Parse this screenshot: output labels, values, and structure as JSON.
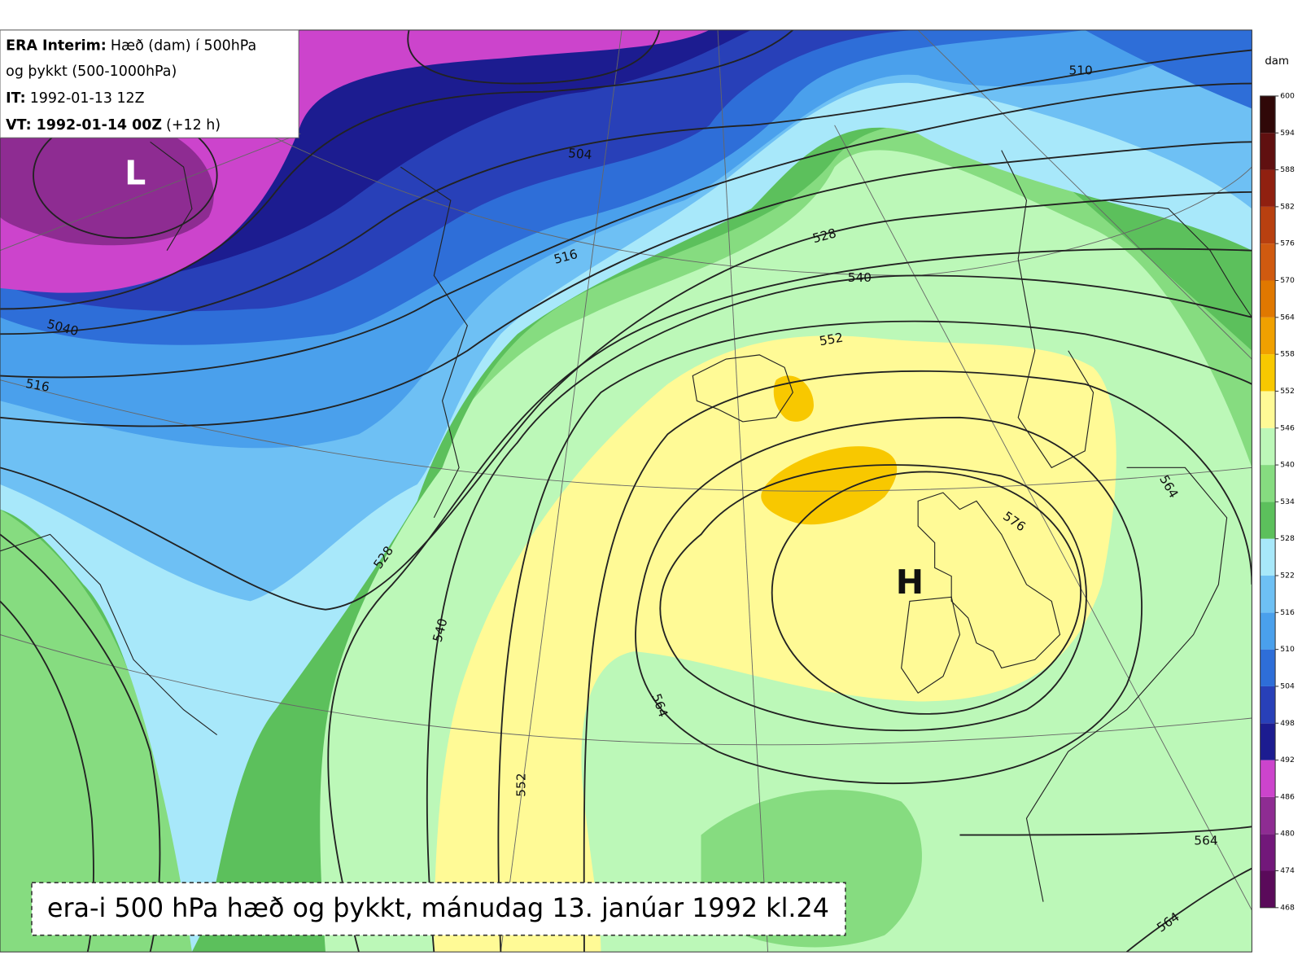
{
  "info": {
    "lines": [
      {
        "bold": "ERA Interim:",
        "text": "Hæð (dam) í 500hPa"
      },
      {
        "text": "og þykkt (500-1000hPa)"
      },
      {
        "bold": "IT:",
        "text": "1992-01-13 12Z"
      },
      {
        "bold": "VT: 1992-01-14 00Z",
        "text": "(+12 h)"
      }
    ]
  },
  "map": {
    "low": "L",
    "high": "H",
    "contour_labels": [
      510,
      504,
      516,
      528,
      540,
      552,
      5040,
      516,
      528,
      540,
      552,
      564,
      576,
      564,
      564,
      564
    ]
  },
  "colorbar": {
    "unit": "dam",
    "ticks": [
      468,
      474,
      480,
      486,
      492,
      498,
      504,
      510,
      516,
      522,
      528,
      534,
      540,
      546,
      552,
      558,
      564,
      570,
      576,
      582,
      588,
      594,
      600
    ],
    "colors": [
      "#5a0a5a",
      "#72187a",
      "#8e2c92",
      "#cc44cc",
      "#1c1c90",
      "#2840b8",
      "#2e6ed8",
      "#4aa0ec",
      "#6ec0f4",
      "#a8e8fa",
      "#5cc05c",
      "#86dc80",
      "#bcf8b8",
      "#fffa96",
      "#f8c800",
      "#f0a000",
      "#e07800",
      "#d05a10",
      "#b84010",
      "#902010",
      "#601010",
      "#300808"
    ]
  },
  "caption": "era-i 500 hPa hæð og þykkt, mánudag 13. janúar 1992 kl.24"
}
